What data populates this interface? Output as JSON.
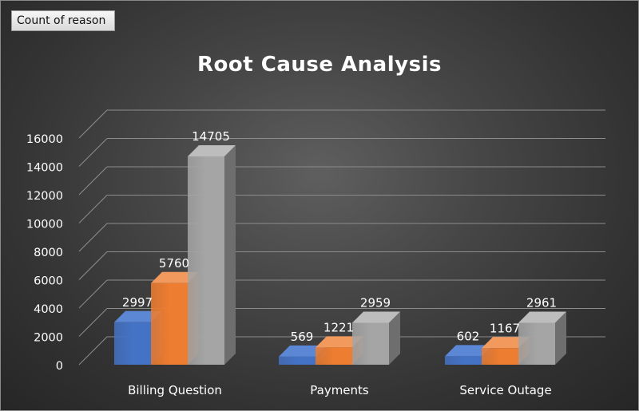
{
  "field_button": {
    "label": "Count of reason"
  },
  "colors": {
    "series": [
      {
        "front": "#4472C4",
        "side": "#2F5597",
        "top": "#5B87D4"
      },
      {
        "front": "#ED7D31",
        "side": "#B55B1E",
        "top": "#F29A5E"
      },
      {
        "front": "#A5A5A5",
        "side": "#6E6E6E",
        "top": "#BDBDBD"
      }
    ],
    "grid": "#8c8c8c",
    "text": "#ffffff"
  },
  "chart_data": {
    "type": "bar",
    "variant": "3d-clustered-column",
    "title": "Root Cause Analysis",
    "categories": [
      "Billing Question",
      "Payments",
      "Service Outage"
    ],
    "series": [
      {
        "values": [
          2997,
          569,
          602
        ]
      },
      {
        "values": [
          5760,
          1221,
          1167
        ]
      },
      {
        "values": [
          14705,
          2959,
          2961
        ]
      }
    ],
    "ylim": [
      0,
      16000
    ],
    "yticks": [
      0,
      2000,
      4000,
      6000,
      8000,
      10000,
      12000,
      14000,
      16000
    ],
    "grid": true,
    "legend": "none",
    "data_labels": true
  }
}
